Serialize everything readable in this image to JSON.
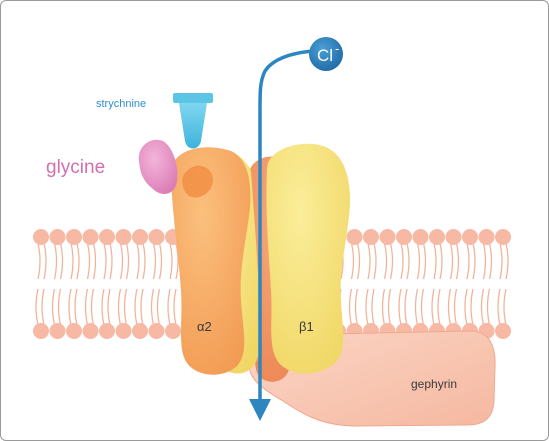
{
  "labels": {
    "ion": "Cl",
    "ion_charge": "-",
    "antagonist": "strychnine",
    "agonist": "glycine",
    "subunit_alpha": "α2",
    "subunit_beta": "β1",
    "anchor_protein": "gephyrin"
  },
  "colors": {
    "membrane_head": "#f7b9a3",
    "membrane_tail": "#f2b39c",
    "alpha_subunit": "#f7a45e",
    "beta_subunit": "#f3de70",
    "back_subunit": "#f08c5c",
    "gephyrin": "#f8c4b0",
    "glycine": "#e58cbf",
    "strychnine": "#5cc5e5",
    "ion_arrow": "#2e86c1",
    "ion_circle": "#2878b4",
    "glycine_text": "#d56fb0",
    "strychnine_text": "#2f8fd0"
  }
}
